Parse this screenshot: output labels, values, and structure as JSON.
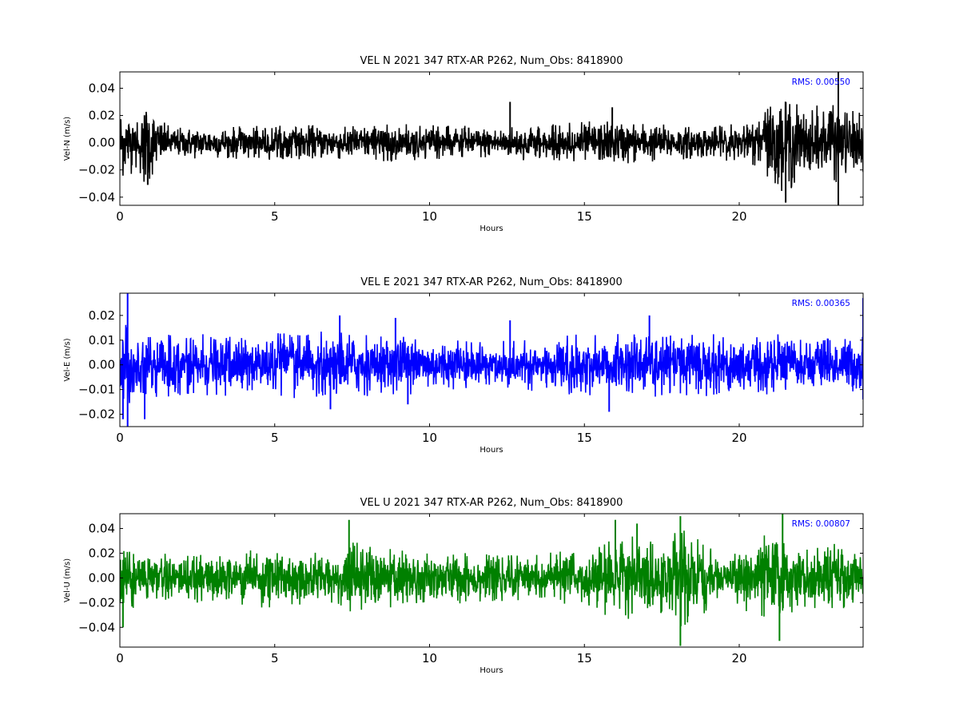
{
  "chart_data": [
    {
      "type": "line",
      "title": "VEL N 2021 347 RTX-AR  P262, Num_Obs: 8418900",
      "xlabel": "Hours",
      "ylabel": "Vel-N (m/s)",
      "xlim": [
        0,
        24
      ],
      "ylim": [
        -0.046,
        0.052
      ],
      "xticks": [
        0,
        5,
        10,
        15,
        20
      ],
      "xtick_labels": [
        "0",
        "5",
        "10",
        "15",
        "20"
      ],
      "yticks": [
        -0.04,
        -0.02,
        0.0,
        0.02,
        0.04
      ],
      "ytick_labels": [
        "−0.04",
        "−0.02",
        "0.00",
        "0.02",
        "0.04"
      ],
      "annotation": "RMS:  0.00550",
      "color": "#000000",
      "grid": false,
      "series": [
        {
          "x_range": [
            0,
            24
          ],
          "rms": 0.0055,
          "envelope": [
            [
              0,
              0.03
            ],
            [
              0.3,
              0.024
            ],
            [
              0.6,
              0.028
            ],
            [
              0.9,
              0.034
            ],
            [
              1.2,
              0.02
            ],
            [
              1.6,
              0.012
            ],
            [
              3,
              0.012
            ],
            [
              6,
              0.013
            ],
            [
              9,
              0.014
            ],
            [
              12,
              0.012
            ],
            [
              14,
              0.014
            ],
            [
              16,
              0.017
            ],
            [
              17.5,
              0.014
            ],
            [
              19,
              0.012
            ],
            [
              20.3,
              0.016
            ],
            [
              21,
              0.03
            ],
            [
              21.5,
              0.042
            ],
            [
              22,
              0.026
            ],
            [
              23,
              0.03
            ],
            [
              24,
              0.022
            ]
          ],
          "spikes": [
            [
              23.2,
              -0.046
            ],
            [
              23.2,
              0.052
            ],
            [
              21.5,
              -0.044
            ],
            [
              0.9,
              -0.031
            ],
            [
              12.6,
              0.03
            ],
            [
              15.9,
              0.026
            ]
          ]
        }
      ]
    },
    {
      "type": "line",
      "title": "VEL E 2021 347 RTX-AR  P262, Num_Obs: 8418900",
      "xlabel": "Hours",
      "ylabel": "Vel-E (m/s)",
      "xlim": [
        0,
        24
      ],
      "ylim": [
        -0.025,
        0.029
      ],
      "xticks": [
        0,
        5,
        10,
        15,
        20
      ],
      "xtick_labels": [
        "0",
        "5",
        "10",
        "15",
        "20"
      ],
      "yticks": [
        -0.02,
        -0.01,
        0.0,
        0.01,
        0.02
      ],
      "ytick_labels": [
        "−0.02",
        "−0.01",
        "0.00",
        "0.01",
        "0.02"
      ],
      "annotation": "RMS:  0.00365",
      "color": "#0000ff",
      "grid": false,
      "series": [
        {
          "x_range": [
            0,
            24
          ],
          "rms": 0.00365,
          "envelope": [
            [
              0,
              0.02
            ],
            [
              0.5,
              0.013
            ],
            [
              3,
              0.013
            ],
            [
              7,
              0.014
            ],
            [
              9,
              0.013
            ],
            [
              10,
              0.011
            ],
            [
              13,
              0.01
            ],
            [
              14,
              0.012
            ],
            [
              17,
              0.013
            ],
            [
              20,
              0.013
            ],
            [
              21.5,
              0.013
            ],
            [
              22,
              0.01
            ],
            [
              24,
              0.012
            ]
          ],
          "spikes": [
            [
              0.25,
              0.029
            ],
            [
              0.25,
              -0.025
            ],
            [
              0.1,
              -0.022
            ],
            [
              0.8,
              -0.022
            ],
            [
              7.1,
              0.02
            ],
            [
              8.9,
              0.019
            ],
            [
              12.6,
              0.018
            ],
            [
              17.1,
              0.02
            ],
            [
              24,
              0.027
            ],
            [
              24,
              -0.014
            ],
            [
              6.8,
              -0.018
            ],
            [
              9.3,
              -0.016
            ],
            [
              15.8,
              -0.019
            ]
          ]
        }
      ]
    },
    {
      "type": "line",
      "title": "VEL U 2021 347 RTX-AR  P262, Num_Obs: 8418900",
      "xlabel": "Hours",
      "ylabel": "Vel-U (m/s)",
      "xlim": [
        0,
        24
      ],
      "ylim": [
        -0.056,
        0.052
      ],
      "xticks": [
        0,
        5,
        10,
        15,
        20
      ],
      "xtick_labels": [
        "0",
        "5",
        "10",
        "15",
        "20"
      ],
      "yticks": [
        -0.04,
        -0.02,
        0.0,
        0.02,
        0.04
      ],
      "ytick_labels": [
        "−0.04",
        "−0.02",
        "0.00",
        "0.02",
        "0.04"
      ],
      "annotation": "RMS:  0.00807",
      "color": "#008000",
      "grid": false,
      "series": [
        {
          "x_range": [
            0,
            24
          ],
          "rms": 0.00807,
          "envelope": [
            [
              0,
              0.038
            ],
            [
              0.4,
              0.028
            ],
            [
              1,
              0.02
            ],
            [
              3,
              0.02
            ],
            [
              5,
              0.025
            ],
            [
              6,
              0.022
            ],
            [
              7,
              0.02
            ],
            [
              7.5,
              0.03
            ],
            [
              8.5,
              0.026
            ],
            [
              10,
              0.022
            ],
            [
              13,
              0.018
            ],
            [
              14,
              0.022
            ],
            [
              15,
              0.02
            ],
            [
              15.5,
              0.03
            ],
            [
              16.5,
              0.034
            ],
            [
              17.5,
              0.03
            ],
            [
              18.2,
              0.045
            ],
            [
              19,
              0.028
            ],
            [
              19.5,
              0.012
            ],
            [
              20.2,
              0.028
            ],
            [
              21,
              0.038
            ],
            [
              21.6,
              0.032
            ],
            [
              22,
              0.024
            ],
            [
              23,
              0.028
            ],
            [
              24,
              0.022
            ]
          ],
          "spikes": [
            [
              18.1,
              -0.055
            ],
            [
              18.1,
              0.05
            ],
            [
              21.4,
              0.052
            ],
            [
              7.4,
              0.047
            ],
            [
              0.1,
              -0.04
            ],
            [
              21.3,
              -0.051
            ],
            [
              16.0,
              0.047
            ],
            [
              16.7,
              0.044
            ]
          ]
        }
      ]
    }
  ]
}
